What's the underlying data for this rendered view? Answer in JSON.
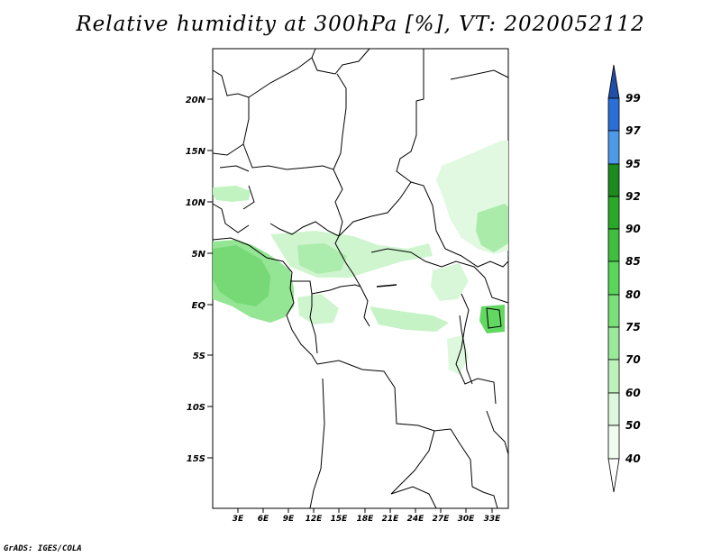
{
  "title": "Relative humidity at 300hPa [%], VT: 2020052112",
  "credit": "GrADS: IGES/COLA",
  "lat_labels": [
    "20N",
    "15N",
    "10N",
    "5N",
    "EQ",
    "5S",
    "10S",
    "15S"
  ],
  "lon_labels": [
    "3E",
    "6E",
    "9E",
    "12E",
    "15E",
    "18E",
    "21E",
    "24E",
    "27E",
    "30E",
    "33E"
  ],
  "colorbar": {
    "levels": [
      "99",
      "97",
      "95",
      "92",
      "90",
      "85",
      "80",
      "75",
      "70",
      "60",
      "50",
      "40"
    ],
    "colors": [
      "#1f4fa6",
      "#2a6fd6",
      "#4c9ae8",
      "#1d8a1d",
      "#2aa82a",
      "#3fbe3f",
      "#5ad65a",
      "#7ae07a",
      "#9bea9b",
      "#bdf2bd",
      "#dcf8dc",
      "#f1fcf1"
    ]
  }
}
